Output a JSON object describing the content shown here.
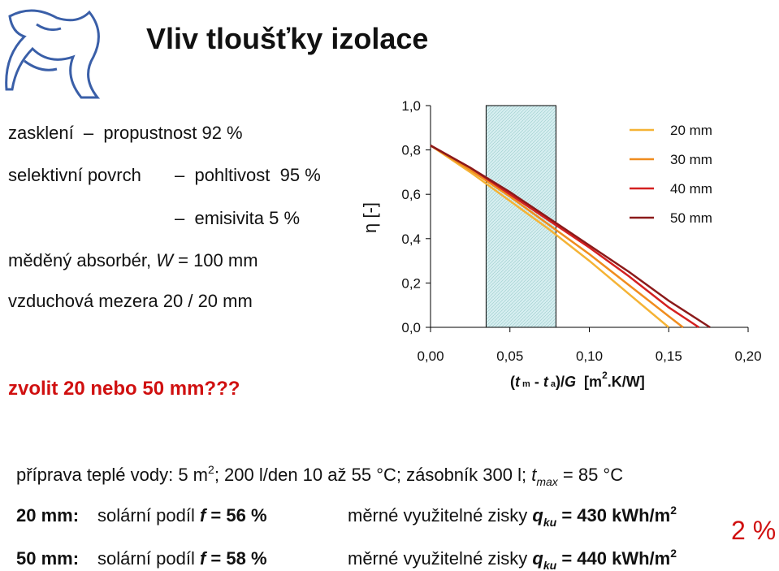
{
  "title": "Vliv tloušťky izolace",
  "left": {
    "line1": "zasklení  –  propustnost 92 %",
    "line2a": "selektivní povrch",
    "line2b": "–  pohltivost  95 %",
    "line3": "–  emisivita 5 %",
    "line4a": "měděný absorbér, ",
    "line4b": "W",
    "line4c": " = 100 mm",
    "line5": "vzduchová mezera 20 / 20 mm",
    "question": "zvolit 20 nebo 50 mm???"
  },
  "bottom": {
    "line1": [
      "příprava teplé vody: 5 m",
      "2",
      "; 200 l/den 10 až 55 °C; zásobník 300 l; ",
      "t",
      "max",
      " = 85 °C"
    ],
    "row1": [
      "20 mm:",
      "solární podíl ",
      "f",
      " = 56 %",
      "měrné využitelné zisky ",
      "q",
      "ku",
      " = 430 kWh/m",
      "2"
    ],
    "row2": [
      "50 mm:",
      "solární podíl ",
      "f",
      " = 58 %",
      "měrné využitelné zisky ",
      "q",
      "ku",
      " = 440 kWh/m",
      "2"
    ],
    "difference": "2 %"
  },
  "chart_data": {
    "type": "line",
    "y_label": "η [-]",
    "x_label_parts": [
      "(",
      "t",
      " m",
      " - ",
      "t",
      " a",
      ")/",
      "G",
      "  [m",
      "2",
      ".K/W]"
    ],
    "xlim": [
      0,
      0.2
    ],
    "ylim": [
      0,
      1
    ],
    "xticks": [
      {
        "value": 0,
        "label": "0,00"
      },
      {
        "value": 0.05,
        "label": "0,05"
      },
      {
        "value": 0.1,
        "label": "0,10"
      },
      {
        "value": 0.15,
        "label": "0,15"
      },
      {
        "value": 0.2,
        "label": "0,20"
      }
    ],
    "yticks": [
      {
        "value": 0,
        "label": "0,0"
      },
      {
        "value": 0.2,
        "label": "0,2"
      },
      {
        "value": 0.4,
        "label": "0,4"
      },
      {
        "value": 0.6,
        "label": "0,6"
      },
      {
        "value": 0.8,
        "label": "0,8"
      },
      {
        "value": 1,
        "label": "1,0"
      }
    ],
    "band": [
      0.035,
      0.079
    ],
    "series": [
      {
        "name": "20 mm",
        "color": "#f5b335",
        "x": [
          0,
          0.025,
          0.05,
          0.075,
          0.1,
          0.125,
          0.15
        ],
        "values": [
          0.82,
          0.7,
          0.57,
          0.44,
          0.3,
          0.15,
          0
        ]
      },
      {
        "name": "30 mm",
        "color": "#f08c1e",
        "x": [
          0,
          0.025,
          0.05,
          0.075,
          0.1,
          0.125,
          0.15,
          0.159
        ],
        "values": [
          0.82,
          0.71,
          0.59,
          0.46,
          0.33,
          0.19,
          0.05,
          0
        ]
      },
      {
        "name": "40 mm",
        "color": "#d42020",
        "x": [
          0,
          0.025,
          0.05,
          0.075,
          0.1,
          0.125,
          0.15,
          0.169
        ],
        "values": [
          0.82,
          0.72,
          0.6,
          0.48,
          0.36,
          0.23,
          0.09,
          0
        ]
      },
      {
        "name": "50 mm",
        "color": "#8b1a1a",
        "x": [
          0,
          0.025,
          0.05,
          0.075,
          0.1,
          0.125,
          0.15,
          0.176
        ],
        "values": [
          0.82,
          0.72,
          0.61,
          0.49,
          0.37,
          0.25,
          0.12,
          0
        ]
      }
    ]
  }
}
